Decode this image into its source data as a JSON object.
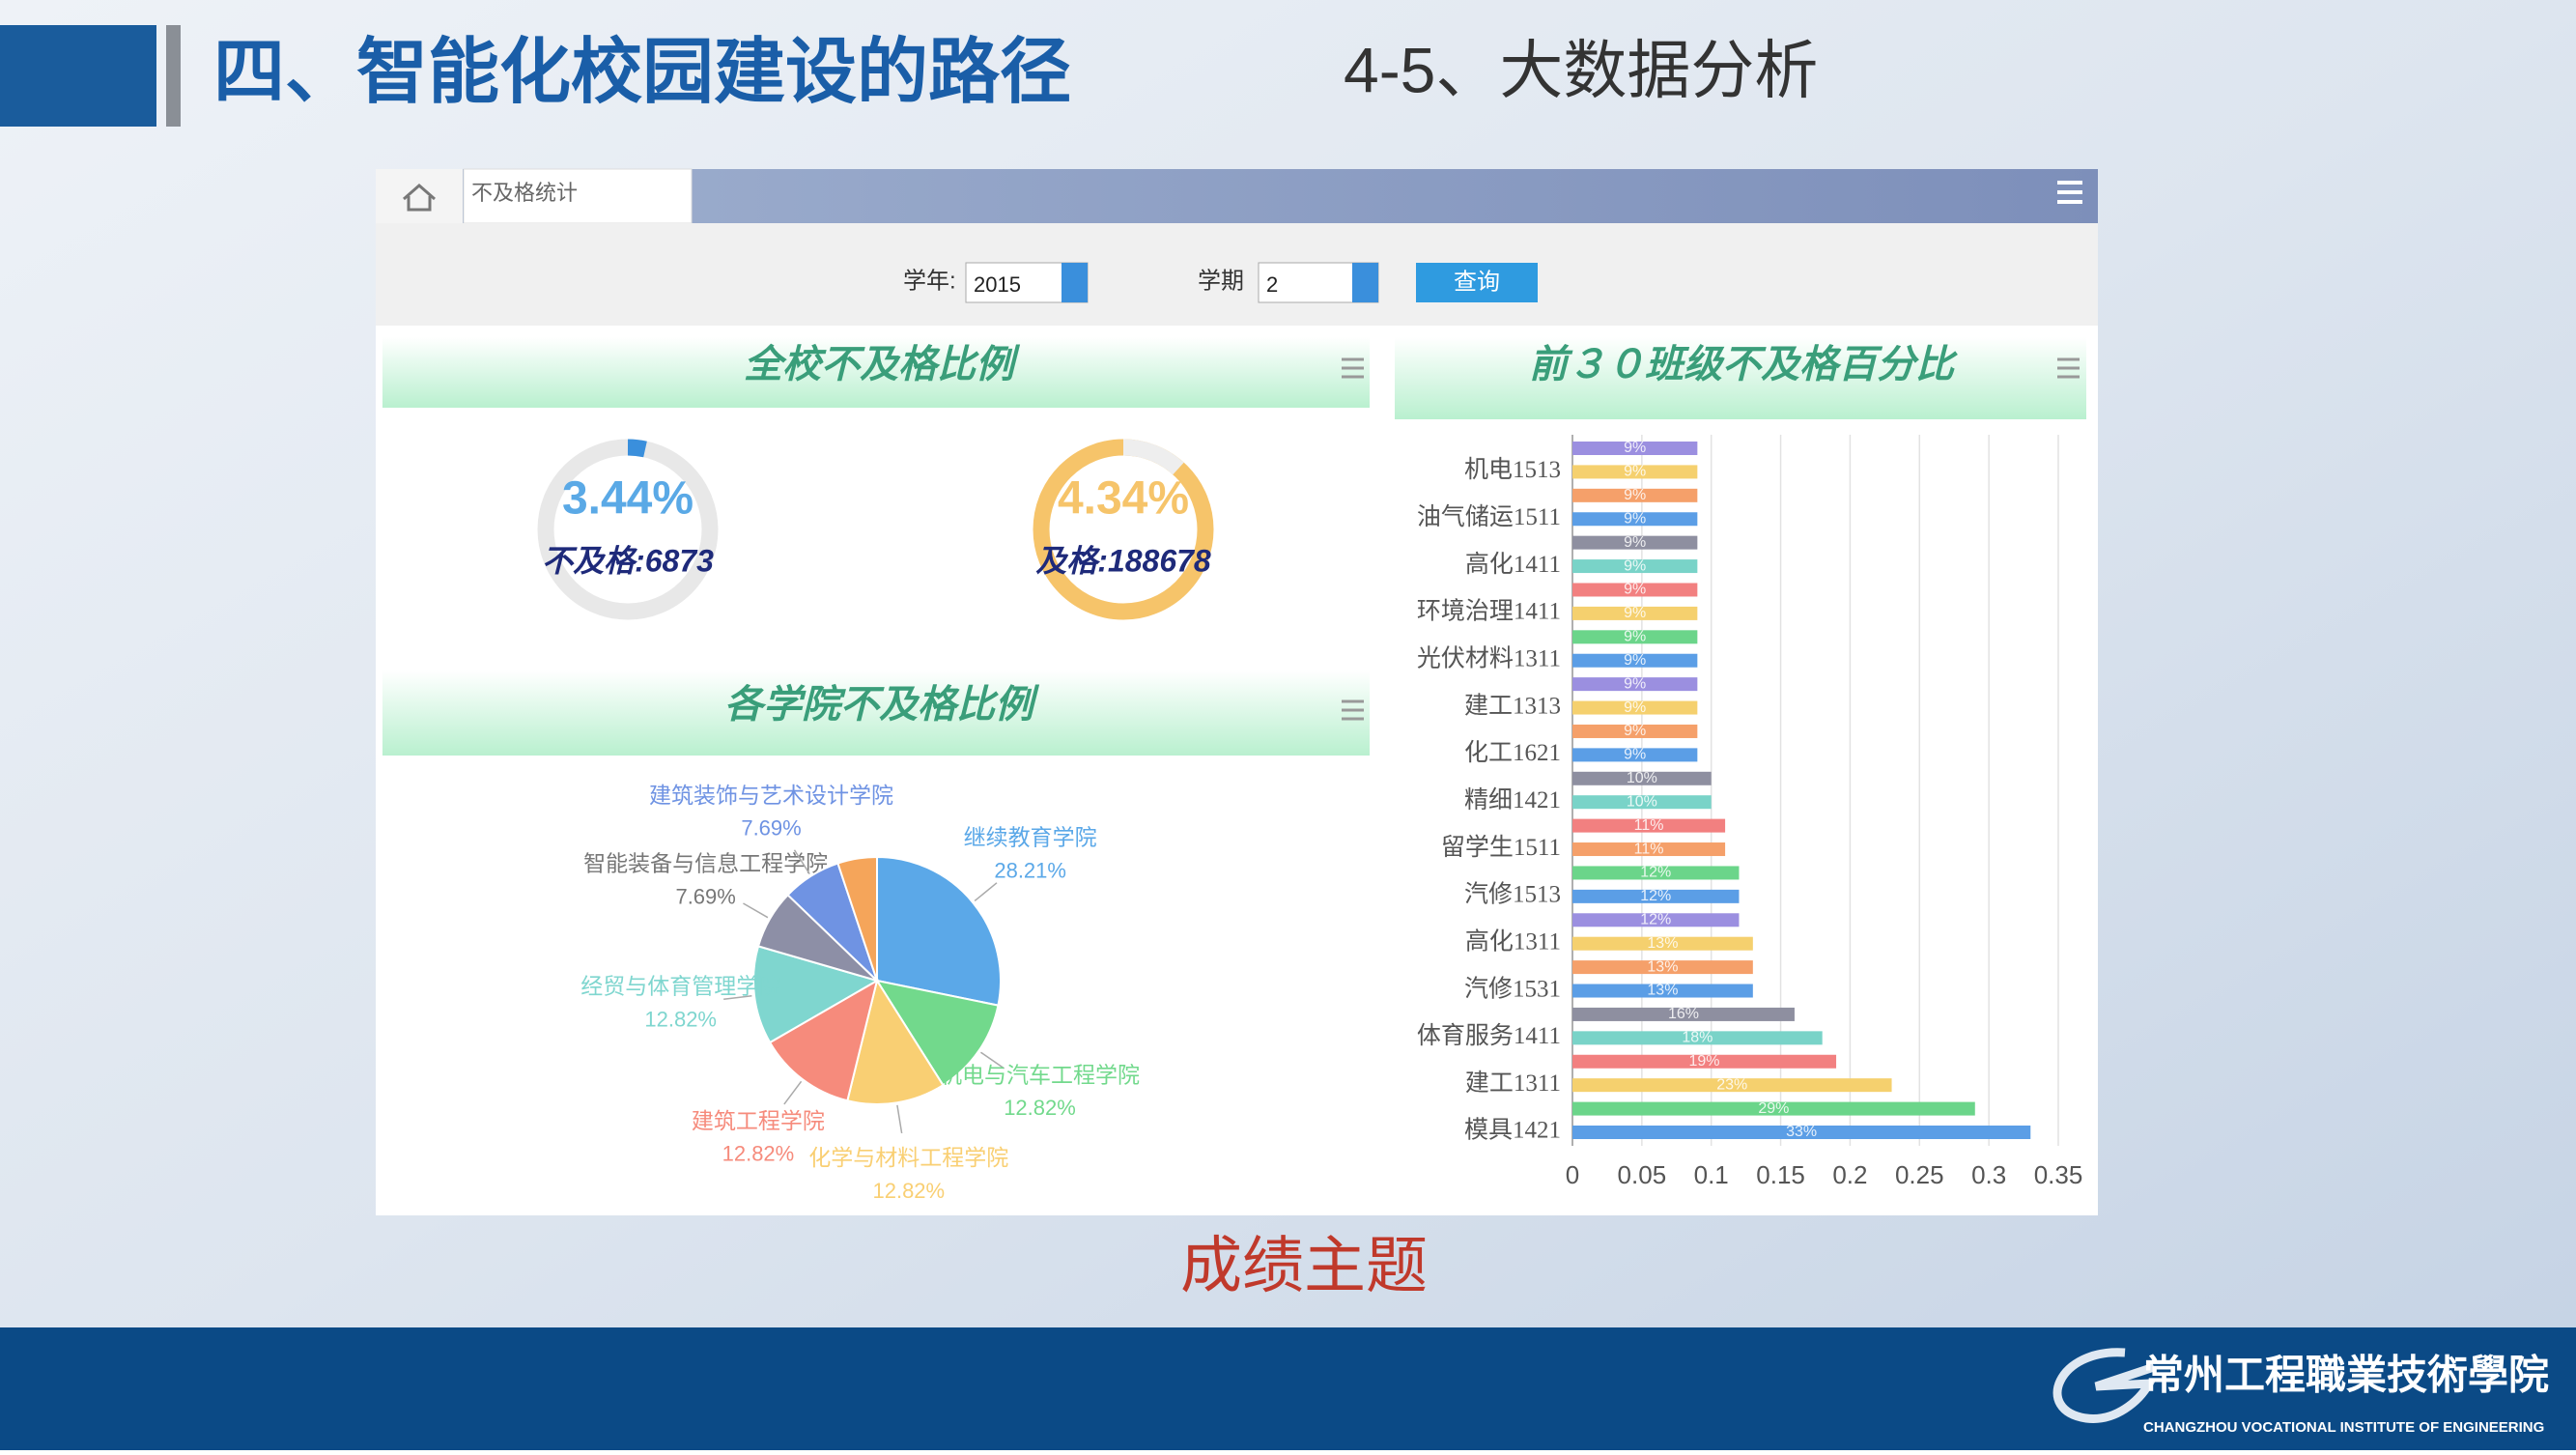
{
  "slide": {
    "title": "四、智能化校园建设的路径",
    "subtitle": "4-5、大数据分析",
    "caption": "成绩主题",
    "school_cn": "常州工程職業技術學院",
    "school_en": "CHANGZHOU VOCATIONAL INSTITUTE OF ENGINEERING"
  },
  "app": {
    "tab": "不及格统计",
    "year_label": "学年:",
    "year": "2015",
    "term_label": "学期",
    "term": "2",
    "query_button": "查询",
    "gauge_panel": {
      "title": "全校不及格比例",
      "gauges": [
        {
          "percent": "3.44%",
          "caption": "不及格:6873"
        },
        {
          "percent": "4.34%",
          "caption": "及格:188678"
        }
      ]
    }
  },
  "chart_data": [
    {
      "type": "pie",
      "title": "各学院不及格比例",
      "categories": [
        "继续教育学院",
        "机电与汽车工程学院",
        "化学与材料工程学院",
        "建筑工程学院",
        "经贸与体育管理学院",
        "智能装备与信息工程学院",
        "建筑装饰与艺术设计学院",
        null
      ],
      "values": [
        28.21,
        12.82,
        12.82,
        12.82,
        12.82,
        7.69,
        7.69,
        5.13
      ],
      "value_labels": [
        "28.21%",
        "12.82%",
        "12.82%",
        "12.82%",
        "12.82%",
        "7.69%",
        "7.69%",
        null
      ],
      "colors": [
        "#5ba8e8",
        "#72d98c",
        "#f9cf73",
        "#f68b7c",
        "#7fd6cf",
        "#8d8fa6",
        "#6f93e3",
        "#f5a55a"
      ]
    },
    {
      "type": "bar",
      "orientation": "horizontal",
      "title": "前３０班级不及格百分比",
      "categories": [
        null,
        "机电1513",
        null,
        "油气储运1511",
        null,
        "高化1411",
        null,
        "环境治理1411",
        null,
        "光伏材料1311",
        null,
        "建工1313",
        null,
        "化工1621",
        null,
        "精细1421",
        null,
        "留学生1511",
        null,
        "汽修1513",
        null,
        "高化1311",
        null,
        "汽修1531",
        null,
        "体育服务1411",
        null,
        "建工1311",
        null,
        "模具1421"
      ],
      "values": [
        0.09,
        0.09,
        0.09,
        0.09,
        0.09,
        0.09,
        0.09,
        0.09,
        0.09,
        0.09,
        0.09,
        0.09,
        0.09,
        0.09,
        0.1,
        0.1,
        0.11,
        0.11,
        0.12,
        0.12,
        0.12,
        0.13,
        0.13,
        0.13,
        0.16,
        0.18,
        0.19,
        0.23,
        0.29,
        0.33
      ],
      "value_labels": [
        "9%",
        "9%",
        "9%",
        "9%",
        "9%",
        "9%",
        "9%",
        "9%",
        "9%",
        "9%",
        "9%",
        "9%",
        "9%",
        "9%",
        "10%",
        "10%",
        "11%",
        "11%",
        "12%",
        "12%",
        "12%",
        "13%",
        "13%",
        "13%",
        "16%",
        "18%",
        "19%",
        "23%",
        "29%",
        "33%"
      ],
      "colors": [
        "#9b8fe0",
        "#f5d06e",
        "#f5a06a",
        "#5b9ee6",
        "#8e8fa0",
        "#79d3c8",
        "#f28080",
        "#f5d06e",
        "#6bd58a",
        "#5b9ee6",
        "#9b8fe0",
        "#f5d06e",
        "#f5a06a",
        "#5b9ee6",
        "#8e8fa0",
        "#79d3c8",
        "#f28080",
        "#f5a06a",
        "#6bd58a",
        "#5b9ee6",
        "#9b8fe0",
        "#f5d06e",
        "#f5a06a",
        "#5b9ee6",
        "#8e8fa0",
        "#79d3c8",
        "#f28080",
        "#f5d06e",
        "#6bd58a",
        "#5b9ee6"
      ],
      "xlim": [
        0,
        0.35
      ],
      "xticks": [
        0,
        0.05,
        0.1,
        0.15,
        0.2,
        0.25,
        0.3,
        0.35
      ],
      "grid": true
    }
  ]
}
